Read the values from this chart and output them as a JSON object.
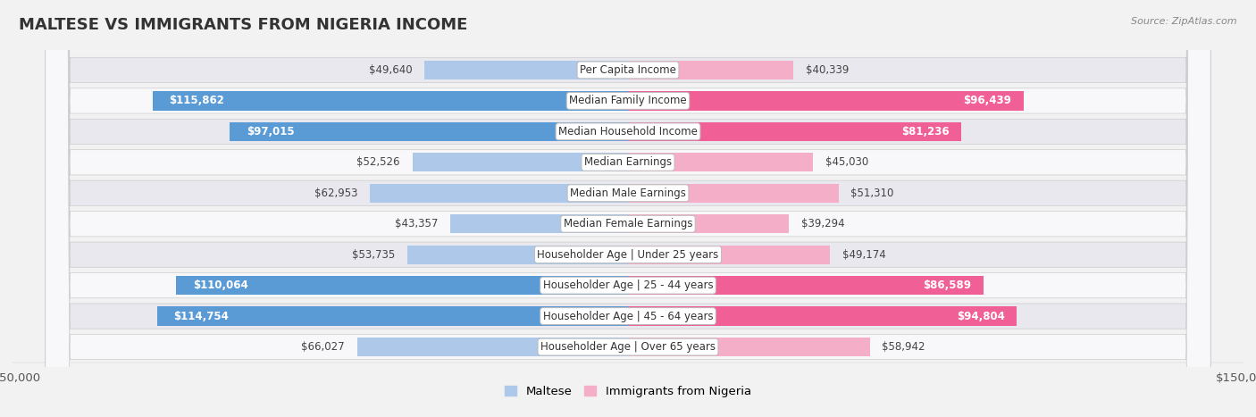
{
  "title": "MALTESE VS IMMIGRANTS FROM NIGERIA INCOME",
  "source": "Source: ZipAtlas.com",
  "categories": [
    "Per Capita Income",
    "Median Family Income",
    "Median Household Income",
    "Median Earnings",
    "Median Male Earnings",
    "Median Female Earnings",
    "Householder Age | Under 25 years",
    "Householder Age | 25 - 44 years",
    "Householder Age | 45 - 64 years",
    "Householder Age | Over 65 years"
  ],
  "maltese_values": [
    49640,
    115862,
    97015,
    52526,
    62953,
    43357,
    53735,
    110064,
    114754,
    66027
  ],
  "nigeria_values": [
    40339,
    96439,
    81236,
    45030,
    51310,
    39294,
    49174,
    86589,
    94804,
    58942
  ],
  "maltese_labels": [
    "$49,640",
    "$115,862",
    "$97,015",
    "$52,526",
    "$62,953",
    "$43,357",
    "$53,735",
    "$110,064",
    "$114,754",
    "$66,027"
  ],
  "nigeria_labels": [
    "$40,339",
    "$96,439",
    "$81,236",
    "$45,030",
    "$51,310",
    "$39,294",
    "$49,174",
    "$86,589",
    "$94,804",
    "$58,942"
  ],
  "maltese_color_light": "#adc8e8",
  "maltese_color_dark": "#5b9bd5",
  "nigeria_color_light": "#f4aec8",
  "nigeria_color_dark": "#f06096",
  "max_value": 150000,
  "bg_color": "#f2f2f2",
  "row_color_even": "#e8e8ee",
  "row_color_odd": "#f8f8fa",
  "label_inside_threshold": 75000,
  "bar_height": 0.62,
  "title_fontsize": 13,
  "axis_fontsize": 9.5,
  "label_fontsize": 8.5,
  "cat_fontsize": 8.5
}
